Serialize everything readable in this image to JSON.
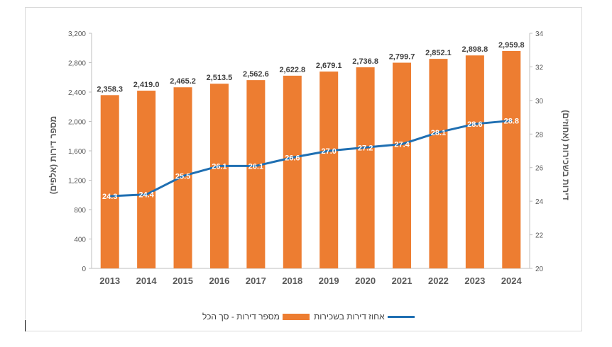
{
  "chart_data": {
    "type": "bar",
    "categories": [
      "2013",
      "2014",
      "2015",
      "2016",
      "2017",
      "2018",
      "2019",
      "2020",
      "2021",
      "2022",
      "2023",
      "2024"
    ],
    "series": [
      {
        "name": "מספר דירות - סך הכל",
        "type": "bar",
        "axis": "left",
        "color": "#ED7D31",
        "values": [
          2358.3,
          2419.0,
          2465.2,
          2513.5,
          2562.6,
          2622.8,
          2679.1,
          2736.8,
          2799.7,
          2852.1,
          2898.8,
          2959.8
        ],
        "labels": [
          "2,358.3",
          "2,419.0",
          "2,465.2",
          "2,513.5",
          "2,562.6",
          "2,622.8",
          "2,679.1",
          "2,736.8",
          "2,799.7",
          "2,852.1",
          "2,898.8",
          "2,959.8"
        ]
      },
      {
        "name": "אחוז דירות בשכירות",
        "type": "line",
        "axis": "right",
        "color": "#1F6FB2",
        "values": [
          24.3,
          24.4,
          25.5,
          26.1,
          26.1,
          26.6,
          27.0,
          27.2,
          27.4,
          28.1,
          28.6,
          28.8
        ],
        "labels": [
          "24.3",
          "24.4",
          "25.5",
          "26.1",
          "26.1",
          "26.6",
          "27.0",
          "27.2",
          "27.4",
          "28.1",
          "28.6",
          "28.8"
        ]
      }
    ],
    "ylabel": "מספר דירות (אלפים)",
    "y2label": "דירות בשכירות (אחוזים)",
    "ylim": [
      0,
      3200
    ],
    "y2lim": [
      20,
      34
    ],
    "yticks": [
      "0",
      "400",
      "800",
      "1,200",
      "1,600",
      "2,000",
      "2,400",
      "2,800",
      "3,200"
    ],
    "y2ticks": [
      "20",
      "22",
      "24",
      "26",
      "28",
      "30",
      "32",
      "34"
    ],
    "grid": false,
    "legend_position": "bottom"
  }
}
